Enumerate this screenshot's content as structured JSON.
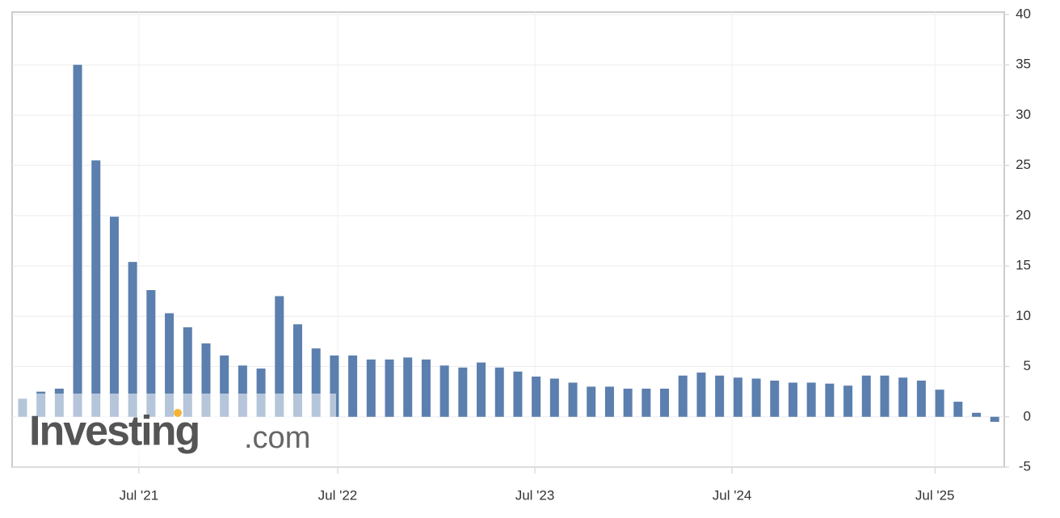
{
  "chart_data": {
    "type": "bar",
    "watermark": {
      "brand": "Investing",
      "suffix": ".com"
    },
    "x": [
      0,
      1,
      2,
      3,
      4,
      5,
      6,
      7,
      8,
      9,
      10,
      11,
      12,
      13,
      14,
      15,
      16,
      17,
      18,
      19,
      20,
      21,
      22,
      23,
      24,
      25,
      26,
      27,
      28,
      29,
      30,
      31,
      32,
      33,
      34,
      35,
      36,
      37,
      38,
      39,
      40,
      41,
      42,
      43,
      44,
      45,
      46,
      47,
      48,
      49,
      50,
      51,
      52,
      53
    ],
    "values": [
      1.8,
      2.5,
      2.8,
      35.0,
      25.5,
      19.9,
      15.4,
      12.6,
      10.3,
      8.9,
      7.3,
      6.1,
      5.1,
      4.8,
      12.0,
      9.2,
      6.8,
      6.1,
      6.1,
      5.7,
      5.7,
      5.9,
      5.7,
      5.1,
      4.9,
      5.4,
      4.9,
      4.5,
      4.0,
      3.8,
      3.4,
      3.0,
      3.0,
      2.8,
      2.8,
      2.8,
      4.1,
      4.4,
      4.1,
      3.9,
      3.8,
      3.6,
      3.4,
      3.4,
      3.3,
      3.1,
      4.1,
      4.1,
      3.9,
      3.6,
      2.7,
      1.5,
      0.4,
      -0.5
    ],
    "color": "#5b7fae",
    "xlim": [
      -0.57,
      53.52
    ],
    "xticks": [
      {
        "value": 6.34,
        "label": "Jul '21"
      },
      {
        "value": 17.18,
        "label": "Jul '22"
      },
      {
        "value": 27.93,
        "label": "Jul '23"
      },
      {
        "value": 38.68,
        "label": "Jul '24"
      },
      {
        "value": 49.74,
        "label": "Jul '25"
      }
    ],
    "ylim": [
      -5,
      40
    ],
    "yticks": [
      -5,
      0,
      5,
      10,
      15,
      20,
      25,
      30,
      35,
      40
    ],
    "grid": true
  }
}
